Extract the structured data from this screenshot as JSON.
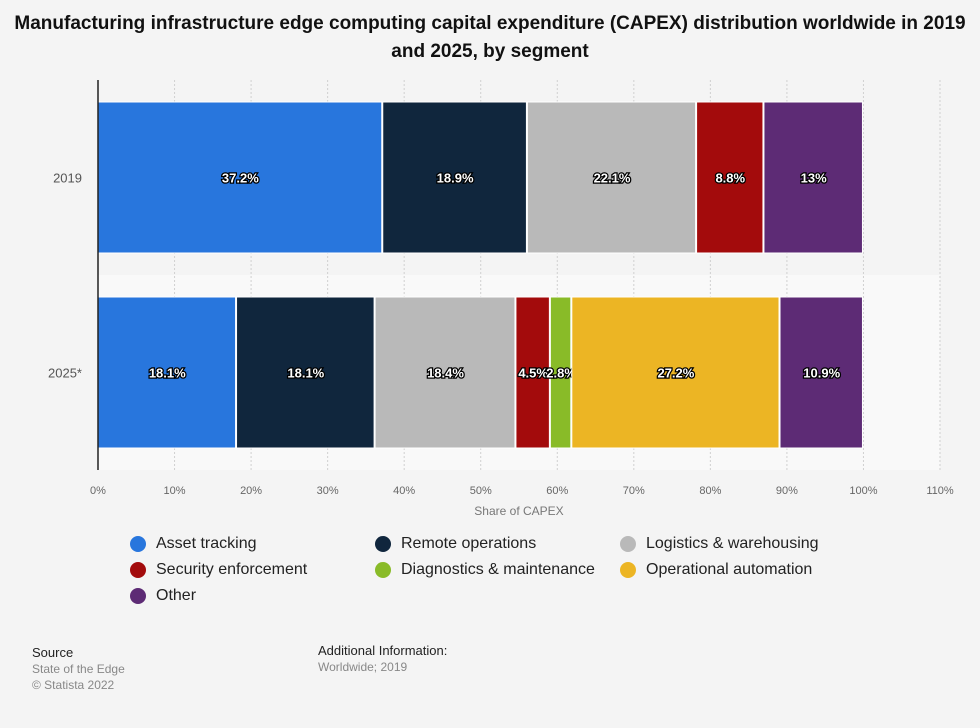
{
  "chart_data": {
    "type": "bar",
    "orientation": "horizontal",
    "stacked": true,
    "title": "Manufacturing infrastructure edge computing capital expenditure (CAPEX) distribution worldwide in 2019 and 2025, by segment",
    "xlabel": "Share of CAPEX",
    "ylabel": "",
    "xlim": [
      0,
      110
    ],
    "x_ticks": [
      "0%",
      "10%",
      "20%",
      "30%",
      "40%",
      "50%",
      "60%",
      "70%",
      "80%",
      "90%",
      "100%",
      "110%"
    ],
    "grid": true,
    "legend_position": "bottom",
    "categories": [
      "2019",
      "2025*"
    ],
    "series": [
      {
        "name": "Asset tracking",
        "color": "#2876dd",
        "values": [
          37.2,
          18.1
        ],
        "labels": [
          "37.2%",
          "18.1%"
        ]
      },
      {
        "name": "Remote operations",
        "color": "#10263d",
        "values": [
          18.9,
          18.1
        ],
        "labels": [
          "18.9%",
          "18.1%"
        ]
      },
      {
        "name": "Logistics & warehousing",
        "color": "#b9b9b9",
        "values": [
          22.1,
          18.4
        ],
        "labels": [
          "22.1%",
          "18.4%"
        ]
      },
      {
        "name": "Security enforcement",
        "color": "#a30b0c",
        "values": [
          8.8,
          4.5
        ],
        "labels": [
          "8.8%",
          "4.5%"
        ]
      },
      {
        "name": "Diagnostics & maintenance",
        "color": "#89bb28",
        "values": [
          null,
          2.8
        ],
        "labels": [
          "",
          "2.8%"
        ]
      },
      {
        "name": "Operational automation",
        "color": "#ecb524",
        "values": [
          null,
          27.2
        ],
        "labels": [
          "",
          "27.2%"
        ]
      },
      {
        "name": "Other",
        "color": "#5d2b75",
        "values": [
          13,
          10.9
        ],
        "labels": [
          "13%",
          "10.9%"
        ]
      }
    ]
  },
  "footer": {
    "source_heading": "Source",
    "source_lines": [
      "State of the Edge",
      "© Statista 2022"
    ],
    "additional_heading": "Additional Information:",
    "additional_text": "Worldwide; 2019"
  }
}
